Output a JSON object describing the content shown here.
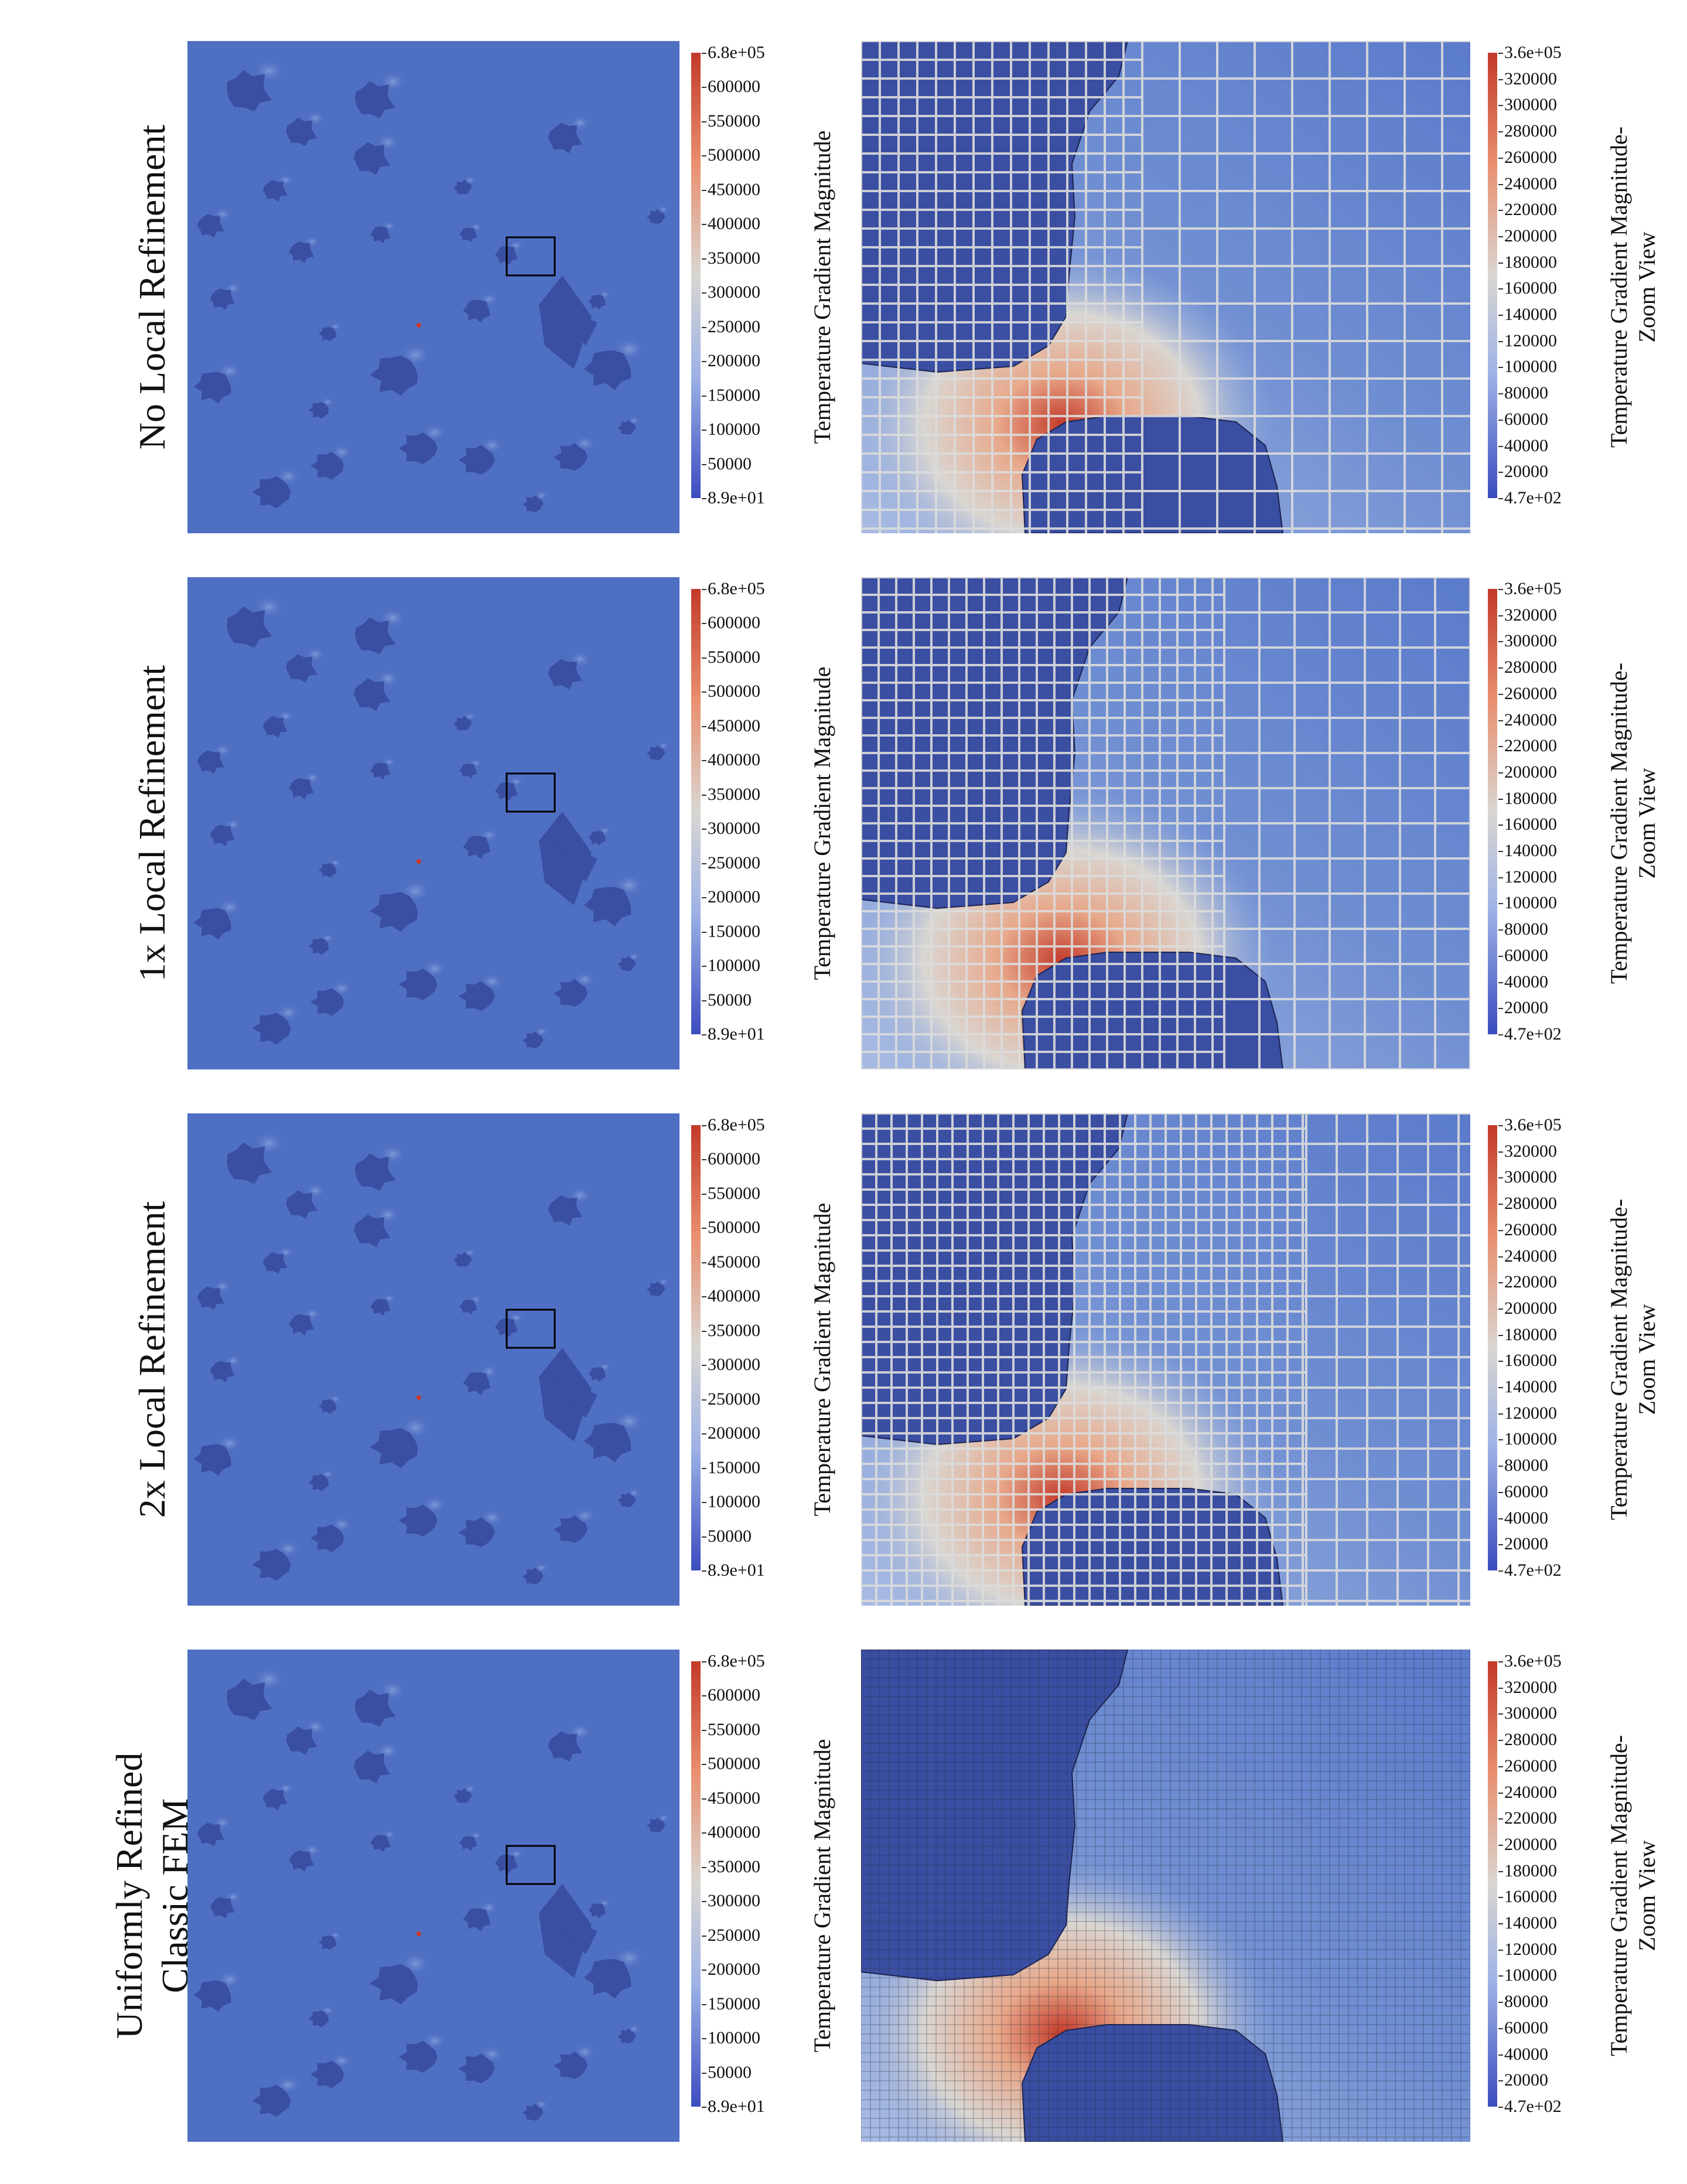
{
  "rows": [
    {
      "label": "No Local Refinement",
      "grid": "coarse"
    },
    {
      "label": "1x Local Refinement",
      "grid": "refined1"
    },
    {
      "label": "2x Local Refinement",
      "grid": "refined2"
    },
    {
      "label": "Uniformly Refined\nClassic FEM",
      "grid": "uniform"
    }
  ],
  "colorbar_full": {
    "title": "Temperature Gradient Magnitude",
    "max_label": "6.8e+05",
    "min_label": "8.9e+01",
    "ticks": [
      "600000",
      "550000",
      "500000",
      "450000",
      "400000",
      "350000",
      "300000",
      "250000",
      "200000",
      "150000",
      "100000",
      "50000"
    ]
  },
  "colorbar_zoom": {
    "title": "Temperature Gradient Magnitude-\nZoom View",
    "max_label": "3.6e+05",
    "min_label": "4.7e+02",
    "ticks": [
      "320000",
      "300000",
      "280000",
      "260000",
      "240000",
      "220000",
      "200000",
      "180000",
      "160000",
      "140000",
      "120000",
      "100000",
      "80000",
      "60000",
      "40000",
      "20000"
    ]
  },
  "colors": {
    "field_base": "#4f6fc3",
    "inclusion": "#3a4ea2",
    "hot": "#c33a2a",
    "warm": "#e8a88a",
    "neutral": "#d9d6d2",
    "grid_line": "#dcdcdc",
    "zoom_box": "#000000"
  }
}
